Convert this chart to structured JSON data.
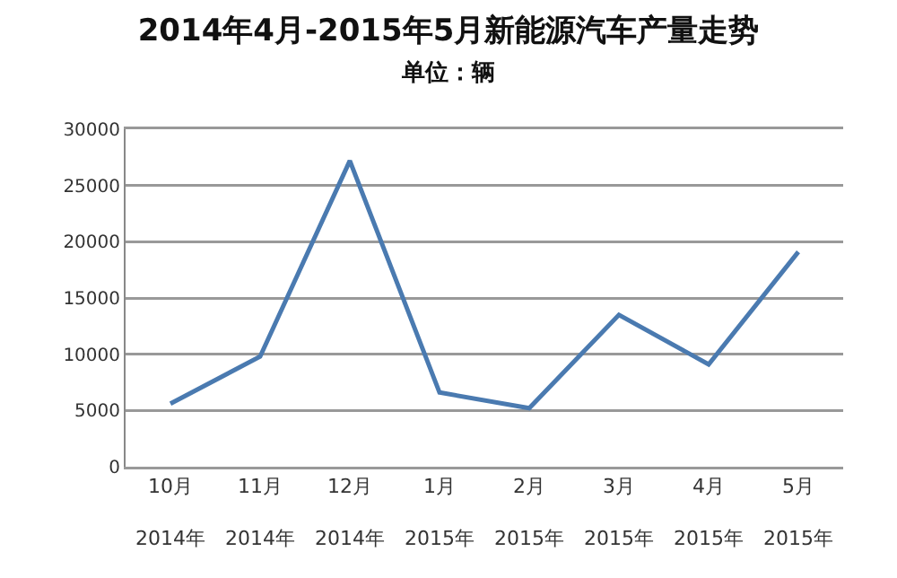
{
  "chart_data": {
    "type": "line",
    "title": "2014年4月-2015年5月新能源汽车产量走势",
    "subtitle": "单位：辆",
    "categories": [
      "10月\n2014年",
      "11月\n2014年",
      "12月\n2014年",
      "1月\n2015年",
      "2月\n2015年",
      "3月\n2015年",
      "4月\n2015年",
      "5月\n2015年"
    ],
    "series": [
      {
        "color": "#4a7ab0",
        "values": [
          5600,
          9800,
          27200,
          6600,
          5200,
          13500,
          9100,
          19100
        ]
      }
    ],
    "ylim": [
      0,
      30000
    ],
    "yticks": [
      0,
      5000,
      10000,
      15000,
      20000,
      25000,
      30000
    ],
    "grid": "y",
    "marker": "none",
    "line_style": "solid"
  }
}
